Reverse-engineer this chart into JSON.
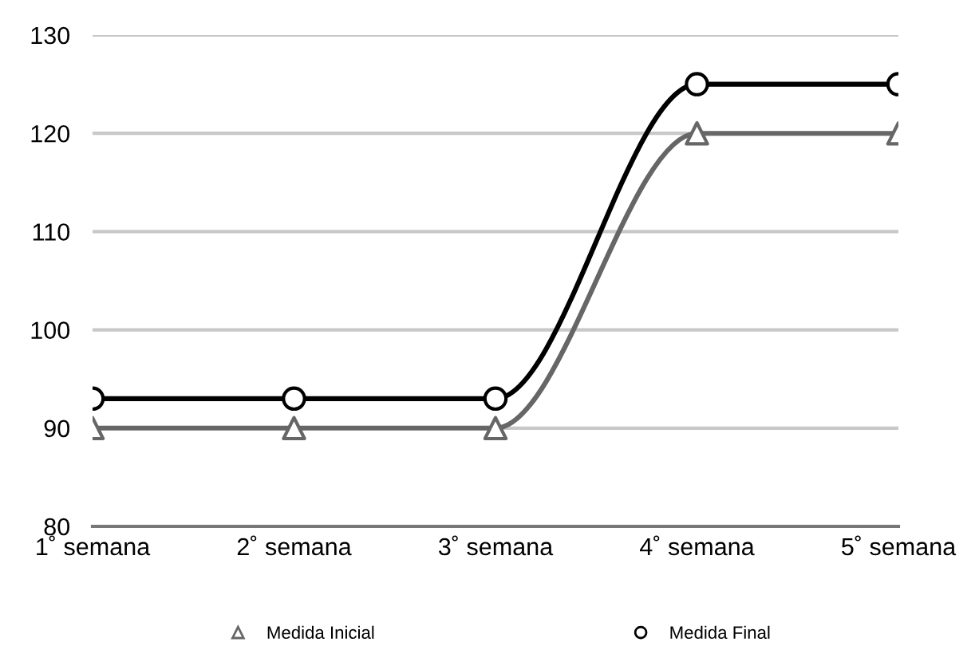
{
  "chart_data": {
    "type": "line",
    "categories": [
      "1˚ semana",
      "2˚ semana",
      "3˚ semana",
      "4˚ semana",
      "5˚ semana"
    ],
    "series": [
      {
        "name": "Medida Inicial",
        "color": "#666666",
        "marker": "triangle",
        "values": [
          90,
          90,
          90,
          120,
          120
        ]
      },
      {
        "name": "Medida Final",
        "color": "#000000",
        "marker": "circle",
        "values": [
          93,
          93,
          93,
          125,
          125
        ]
      }
    ],
    "ylim": [
      80,
      130
    ],
    "yticks": [
      80,
      90,
      100,
      110,
      120,
      130
    ],
    "grid": "y",
    "legend": "bottom",
    "line_style": "solid"
  }
}
